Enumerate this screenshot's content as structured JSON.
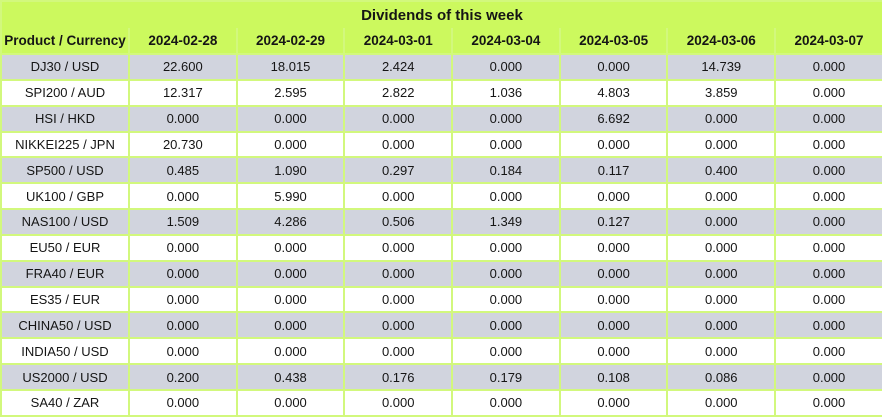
{
  "title": "Dividends of this week",
  "colors": {
    "header_green": "#ccf95e",
    "grid_green": "#d2f87d",
    "row_gray": "#d1d4de",
    "row_white": "#ffffff",
    "text": "#151515"
  },
  "chart_data": {
    "type": "table",
    "title": "Dividends of this week",
    "product_header": "Product / Currency",
    "date_headers": [
      "2024-02-28",
      "2024-02-29",
      "2024-03-01",
      "2024-03-04",
      "2024-03-05",
      "2024-03-06",
      "2024-03-07"
    ],
    "rows": [
      {
        "product": "DJ30 / USD",
        "values": [
          "22.600",
          "18.015",
          "2.424",
          "0.000",
          "0.000",
          "14.739",
          "0.000"
        ],
        "bold_cols": [
          5
        ]
      },
      {
        "product": "SPI200 / AUD",
        "values": [
          "12.317",
          "2.595",
          "2.822",
          "1.036",
          "4.803",
          "3.859",
          "0.000"
        ],
        "bold_cols": [
          1,
          3,
          4,
          5
        ]
      },
      {
        "product": "HSI / HKD",
        "values": [
          "0.000",
          "0.000",
          "0.000",
          "0.000",
          "6.692",
          "0.000",
          "0.000"
        ],
        "bold_cols": []
      },
      {
        "product": "NIKKEI225 / JPN",
        "values": [
          "20.730",
          "0.000",
          "0.000",
          "0.000",
          "0.000",
          "0.000",
          "0.000"
        ],
        "bold_cols": []
      },
      {
        "product": "SP500 / USD",
        "values": [
          "0.485",
          "1.090",
          "0.297",
          "0.184",
          "0.117",
          "0.400",
          "0.000"
        ],
        "bold_cols": [
          5
        ]
      },
      {
        "product": "UK100 / GBP",
        "values": [
          "0.000",
          "5.990",
          "0.000",
          "0.000",
          "0.000",
          "0.000",
          "0.000"
        ],
        "bold_cols": [
          1
        ]
      },
      {
        "product": "NAS100 / USD",
        "values": [
          "1.509",
          "4.286",
          "0.506",
          "1.349",
          "0.127",
          "0.000",
          "0.000"
        ],
        "bold_cols": []
      },
      {
        "product": "EU50 / EUR",
        "values": [
          "0.000",
          "0.000",
          "0.000",
          "0.000",
          "0.000",
          "0.000",
          "0.000"
        ],
        "bold_cols": []
      },
      {
        "product": "FRA40 / EUR",
        "values": [
          "0.000",
          "0.000",
          "0.000",
          "0.000",
          "0.000",
          "0.000",
          "0.000"
        ],
        "bold_cols": []
      },
      {
        "product": "ES35 / EUR",
        "values": [
          "0.000",
          "0.000",
          "0.000",
          "0.000",
          "0.000",
          "0.000",
          "0.000"
        ],
        "bold_cols": []
      },
      {
        "product": "CHINA50 / USD",
        "values": [
          "0.000",
          "0.000",
          "0.000",
          "0.000",
          "0.000",
          "0.000",
          "0.000"
        ],
        "bold_cols": []
      },
      {
        "product": "INDIA50 / USD",
        "values": [
          "0.000",
          "0.000",
          "0.000",
          "0.000",
          "0.000",
          "0.000",
          "0.000"
        ],
        "bold_cols": []
      },
      {
        "product": "US2000 / USD",
        "values": [
          "0.200",
          "0.438",
          "0.176",
          "0.179",
          "0.108",
          "0.086",
          "0.000"
        ],
        "bold_cols": [
          1,
          5
        ]
      },
      {
        "product": "SA40 / ZAR",
        "values": [
          "0.000",
          "0.000",
          "0.000",
          "0.000",
          "0.000",
          "0.000",
          "0.000"
        ],
        "bold_cols": []
      }
    ]
  }
}
